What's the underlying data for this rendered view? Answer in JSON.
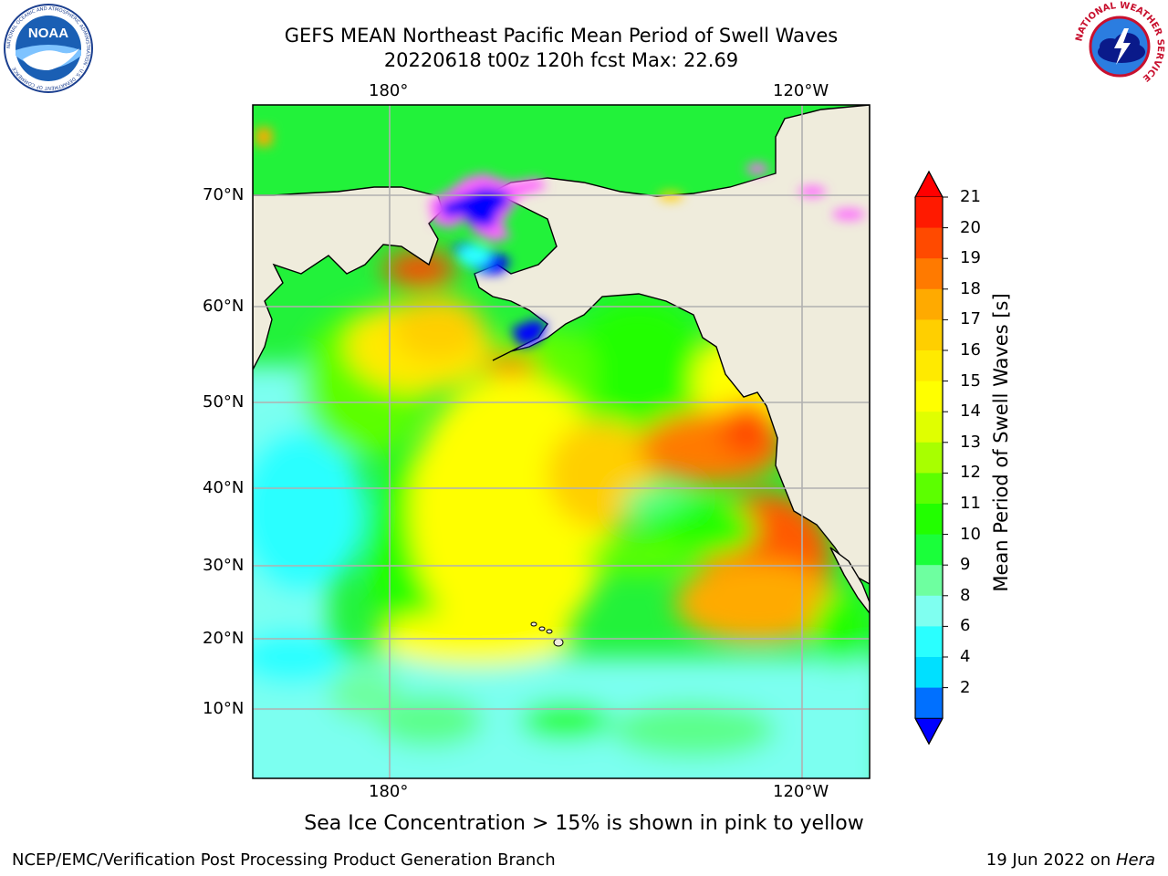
{
  "header": {
    "title_line1": "GEFS MEAN Northeast Pacific Mean Period of Swell Waves",
    "title_line2": "20220618 t00z 120h fcst   Max: 22.69"
  },
  "logos": {
    "noaa_text": "NOAA",
    "noaa_ring_text": "NATIONAL OCEANIC AND ATMOSPHERIC ADMINISTRATION · U.S. DEPARTMENT OF COMMERCE",
    "nws_ring_text": "NATIONAL WEATHER SERVICE"
  },
  "map": {
    "lon_labels_top": [
      "180°",
      "120°W"
    ],
    "lon_labels_bottom": [
      "180°",
      "120°W"
    ],
    "lat_labels": [
      "70°N",
      "60°N",
      "50°N",
      "40°N",
      "30°N",
      "20°N",
      "10°N"
    ],
    "max_value": 22.69
  },
  "colorbar": {
    "title": "Mean Period of Swell Waves [s]",
    "ticks": [
      "21",
      "20",
      "19",
      "18",
      "17",
      "16",
      "15",
      "14",
      "13",
      "12",
      "11",
      "10",
      "9",
      "8",
      "6",
      "4",
      "2"
    ],
    "colors": [
      "#ff1a00",
      "#ff4a00",
      "#ff7a00",
      "#ffaa00",
      "#ffcf00",
      "#ffea00",
      "#ffff00",
      "#e0ff00",
      "#a8ff00",
      "#5cff00",
      "#22ff00",
      "#1aff3a",
      "#6effa0",
      "#7ffff0",
      "#2affff",
      "#00e0ff",
      "#0070ff"
    ],
    "under_color": "#0000ff",
    "over_color": "#ff0000"
  },
  "footer": {
    "note": "Sea Ice Concentration > 15% is shown in pink to yellow",
    "credit": "NCEP/EMC/Verification Post Processing Product Generation Branch",
    "date": "19 Jun 2022 on ",
    "machine": "Hera"
  }
}
